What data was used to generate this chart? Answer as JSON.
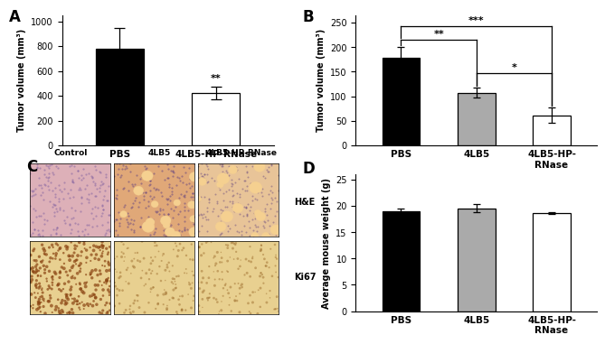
{
  "panel_A": {
    "categories": [
      "PBS",
      "4LB5-HP-RNase"
    ],
    "values": [
      780,
      420
    ],
    "errors": [
      170,
      50
    ],
    "colors": [
      "black",
      "white"
    ],
    "ylabel": "Tumor volume (mm³)",
    "ylim": [
      0,
      1050
    ],
    "yticks": [
      0,
      200,
      400,
      600,
      800,
      1000
    ],
    "significance": "**"
  },
  "panel_B": {
    "categories": [
      "PBS",
      "4LB5",
      "4LB5-HP-\nRNase"
    ],
    "values": [
      178,
      107,
      61
    ],
    "errors": [
      22,
      10,
      16
    ],
    "colors": [
      "black",
      "#aaaaaa",
      "white"
    ],
    "ylabel": "Tumor volume (mm³)",
    "ylim": [
      0,
      265
    ],
    "yticks": [
      0.0,
      50.0,
      100.0,
      150.0,
      200.0,
      250.0
    ],
    "sig1_label": "**",
    "sig2_label": "***",
    "sig3_label": "*"
  },
  "panel_C": {
    "col_labels": [
      "Control",
      "4LB5",
      "4LB5-HP-RNase"
    ],
    "row_labels": [
      "H&E",
      "Ki67"
    ],
    "he_colors": [
      "#e8b8c0",
      "#e8b890",
      "#f0c890"
    ],
    "ki67_colors": [
      "#c8900a",
      "#d4b878",
      "#d4b878"
    ]
  },
  "panel_D": {
    "categories": [
      "PBS",
      "4LB5",
      "4LB5-HP-\nRNase"
    ],
    "values": [
      19.0,
      19.6,
      18.7
    ],
    "errors": [
      0.5,
      0.7,
      0.15
    ],
    "colors": [
      "black",
      "#aaaaaa",
      "white"
    ],
    "ylabel": "Average mouse weight (g)",
    "ylim": [
      0,
      26
    ],
    "yticks": [
      0.0,
      5.0,
      10.0,
      15.0,
      20.0,
      25.0
    ]
  },
  "background_color": "#ffffff"
}
